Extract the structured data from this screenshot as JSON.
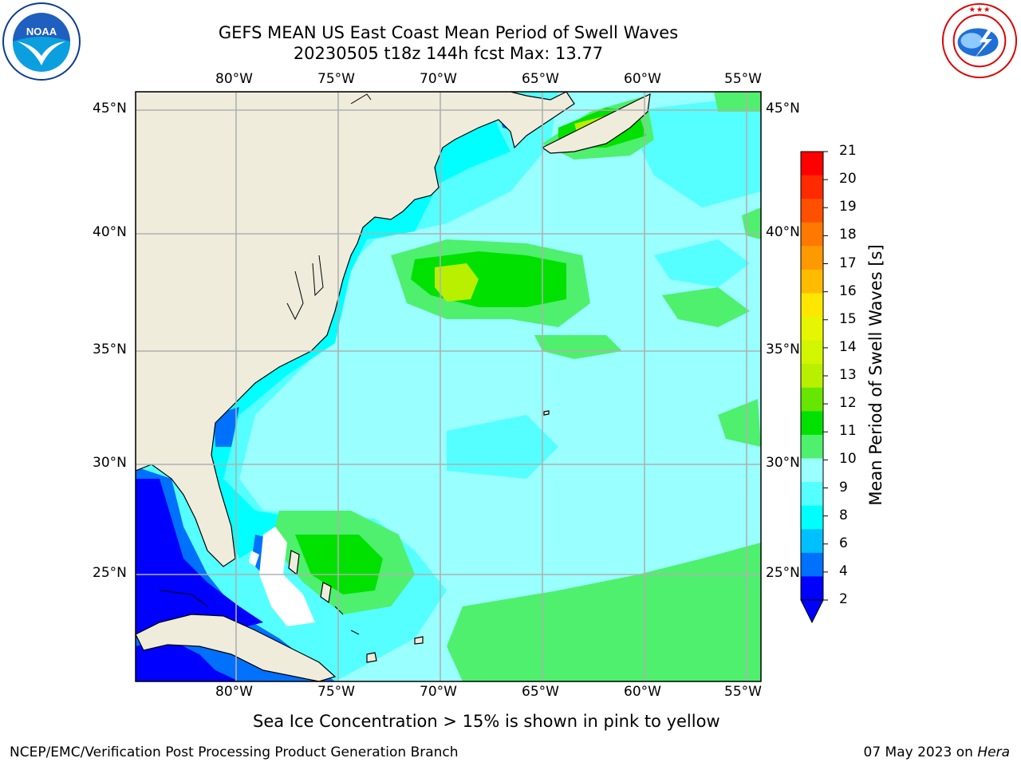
{
  "title_line1": "GEFS MEAN US East Coast Mean Period of Swell Waves",
  "title_line2": "20230505 t18z 144h fcst   Max: 13.77",
  "longitude_labels": [
    "80°W",
    "75°W",
    "70°W",
    "65°W",
    "60°W",
    "55°W"
  ],
  "latitude_labels": [
    "45°N",
    "40°N",
    "35°N",
    "30°N",
    "25°N"
  ],
  "colorbar": {
    "label": "Mean Period of Swell Waves [s]",
    "ticks": [
      "21",
      "20",
      "19",
      "18",
      "17",
      "16",
      "15",
      "14",
      "13",
      "12",
      "11",
      "10",
      "9",
      "8",
      "6",
      "4",
      "2"
    ],
    "colors": [
      "#ff0000",
      "#ff2a00",
      "#ff5000",
      "#ff7800",
      "#ff9900",
      "#ffbb00",
      "#ffe600",
      "#e6f500",
      "#d2f500",
      "#b8f000",
      "#66e600",
      "#00e100",
      "#4ef06e",
      "#99ffff",
      "#55ffff",
      "#00ffff",
      "#00c0ff",
      "#0070ff",
      "#0000ff"
    ],
    "extend_color": "#0000ff"
  },
  "footer": {
    "sea_ice_note": "Sea Ice Concentration > 15% is shown in pink to yellow",
    "credit": "NCEP/EMC/Verification Post Processing Product Generation Branch",
    "date_prefix": "07 May 2023 on ",
    "machine": "Hera"
  },
  "logos": {
    "left": "NOAA",
    "right": "NATIONAL WEATHER SERVICE"
  },
  "map_colors": {
    "land": "#efecdc",
    "ocean_base": "#99ffff",
    "gridline": "#b0b0b0"
  }
}
